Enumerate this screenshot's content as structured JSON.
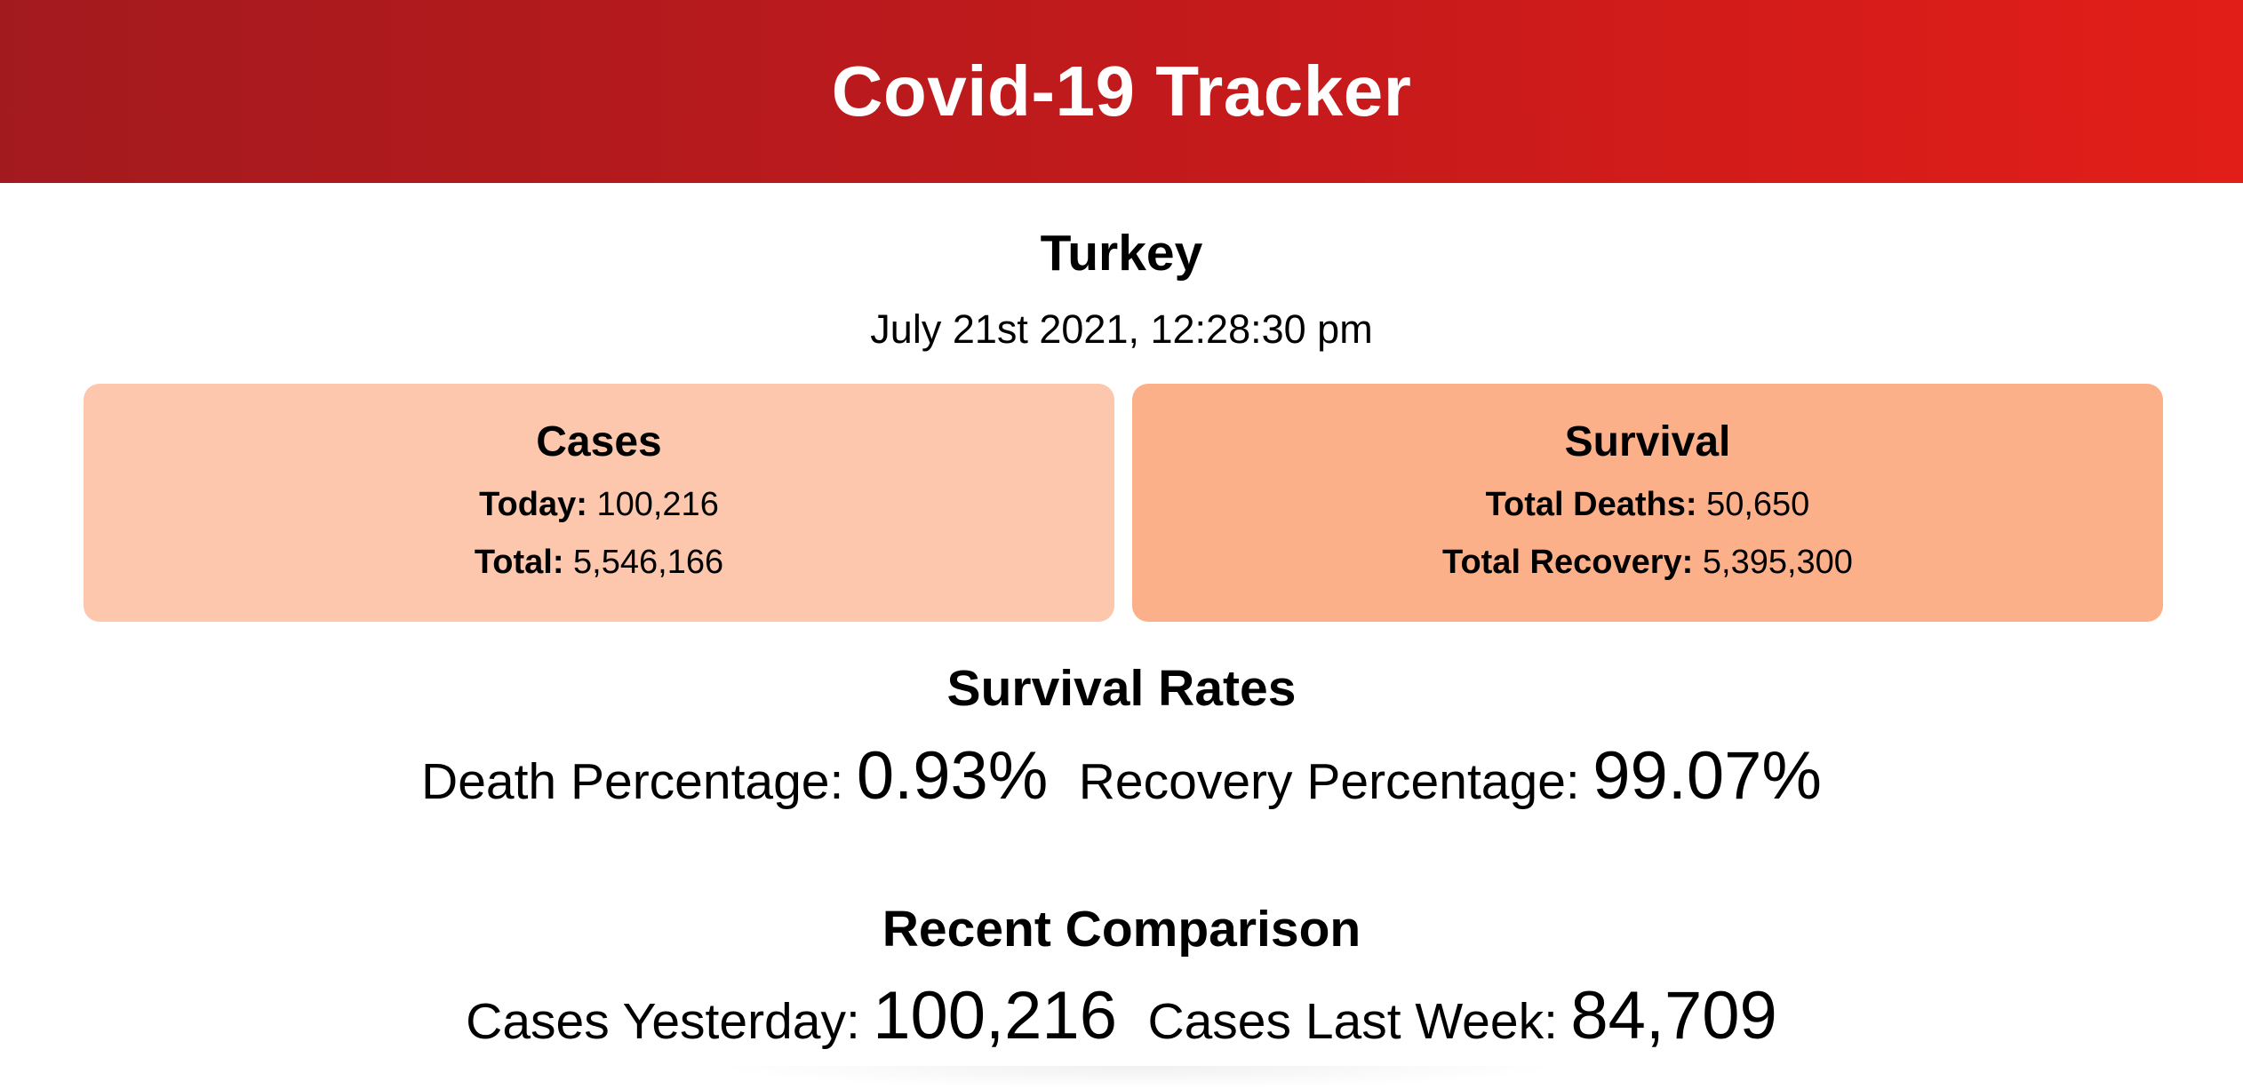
{
  "header": {
    "title": "Covid-19 Tracker"
  },
  "location": {
    "country": "Turkey",
    "datetime": "July 21st 2021, 12:28:30 pm"
  },
  "cards": {
    "cases": {
      "title": "Cases",
      "today_label": "Today:",
      "today_value": "100,216",
      "total_label": "Total:",
      "total_value": "5,546,166",
      "background": "#fcc7ac"
    },
    "survival": {
      "title": "Survival",
      "deaths_label": "Total Deaths:",
      "deaths_value": "50,650",
      "recovery_label": "Total Recovery:",
      "recovery_value": "5,395,300",
      "background": "#fcb08a"
    }
  },
  "survival_rates": {
    "title": "Survival Rates",
    "death_label": "Death Percentage:",
    "death_value": "0.93%",
    "recovery_label": "Recovery Percentage:",
    "recovery_value": "99.07%"
  },
  "recent_comparison": {
    "title": "Recent Comparison",
    "yesterday_label": "Cases Yesterday:",
    "yesterday_value": "100,216",
    "last_week_label": "Cases Last Week:",
    "last_week_value": "84,709"
  },
  "colors": {
    "header_gradient_start": "#a31a1e",
    "header_gradient_end": "#e21e18"
  }
}
